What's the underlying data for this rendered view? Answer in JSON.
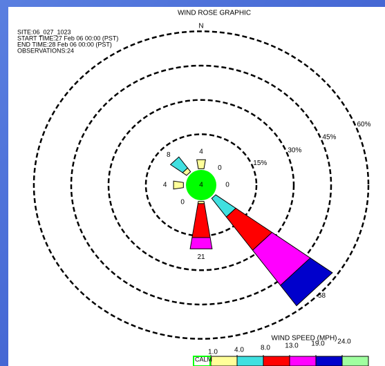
{
  "chart_data": {
    "type": "windrose",
    "title": "WIND ROSE GRAPHIC",
    "info": [
      "SITE:06_027_1023",
      "START TIME:27 Feb 06 00:00 (PST)",
      "END TIME:28 Feb 06 00:00 (PST)",
      "OBSERVATIONS:24"
    ],
    "categories": [
      "N",
      null,
      null,
      null,
      null,
      null,
      null,
      null
    ],
    "totals": [
      4,
      0,
      0,
      58,
      21,
      0,
      4,
      8
    ],
    "calm": 4,
    "calm_label": "CALM",
    "rlim": [
      0,
      60
    ],
    "rticks": [
      {
        "value": 15,
        "label": "15%"
      },
      {
        "value": 30,
        "label": "30%"
      },
      {
        "value": 45,
        "label": "45%"
      },
      {
        "value": 60,
        "label": "60%"
      }
    ],
    "calm_color": "#00ff00",
    "series": [
      {
        "color": "#ffff99",
        "values": [
          4,
          0,
          0,
          0,
          1,
          0,
          4,
          2
        ]
      },
      {
        "color": "#40e0e0",
        "values": [
          0,
          0,
          0,
          10,
          0,
          0,
          0,
          6
        ]
      },
      {
        "color": "#ff0000",
        "values": [
          0,
          0,
          0,
          18,
          15,
          0,
          0,
          0
        ]
      },
      {
        "color": "#ff00ff",
        "values": [
          0,
          0,
          0,
          19,
          5,
          0,
          0,
          0
        ]
      },
      {
        "color": "#0000cc",
        "values": [
          0,
          0,
          0,
          11,
          0,
          0,
          0,
          0
        ]
      },
      {
        "color": "#a0ffa0",
        "values": [
          0,
          0,
          0,
          0,
          0,
          0,
          0,
          0
        ]
      }
    ],
    "legend_title": "WIND SPEED (MPH)",
    "speed_ticks": [
      {
        "value": 1,
        "label": "1.0"
      },
      {
        "value": 4,
        "label": "4.0"
      },
      {
        "value": 8,
        "label": "8.0"
      },
      {
        "value": 13,
        "label": "13.0"
      },
      {
        "value": 19,
        "label": "19.0"
      },
      {
        "value": 24,
        "label": "24.0"
      }
    ]
  }
}
